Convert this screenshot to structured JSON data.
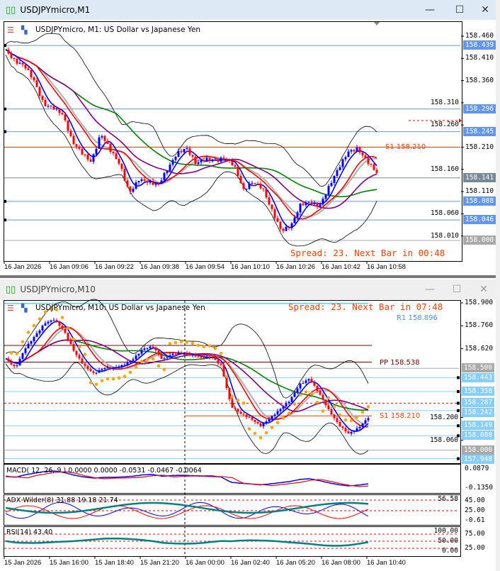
{
  "top": {
    "window_title": "USDJPYmicro,M1",
    "chart_info": "USDJPYmicro, M1:  US Dollar vs Japanese Yen",
    "spread_text": "Spread: 23. Next Bar in 00:48",
    "s1_label": "S1 158.210",
    "price_ticks": [
      "158.460",
      "158.410",
      "158.360",
      "158.310",
      "158.260",
      "158.210",
      "158.160",
      "158.110",
      "158.060",
      "158.010"
    ],
    "price_labels": [
      {
        "v": "158.439",
        "c": "#6495ed"
      },
      {
        "v": "158.296",
        "c": "#6495ed"
      },
      {
        "v": "158.245",
        "c": "#6495ed"
      },
      {
        "v": "158.141",
        "c": "#778899"
      },
      {
        "v": "158.088",
        "c": "#6495ed"
      },
      {
        "v": "158.046",
        "c": "#6495ed"
      },
      {
        "v": "158.000",
        "c": "#a9a9a9"
      }
    ],
    "time_labels": [
      "16 Jan 2026",
      "16 Jan 09:06",
      "16 Jan 09:22",
      "16 Jan 09:38",
      "16 Jan 09:54",
      "16 Jan 10:10",
      "16 Jan 10:26",
      "16 Jan 10:42",
      "16 Jan 10:58"
    ],
    "closes": [
      158.43,
      158.4,
      158.39,
      158.36,
      158.31,
      158.3,
      158.28,
      158.22,
      158.2,
      158.18,
      158.24,
      158.2,
      158.17,
      158.11,
      158.14,
      158.13,
      158.12,
      158.16,
      158.2,
      158.21,
      158.17,
      158.18,
      158.18,
      158.19,
      158.17,
      158.11,
      158.13,
      158.12,
      158.07,
      158.02,
      158.03,
      158.08,
      158.09,
      158.08,
      158.12,
      158.16,
      158.2,
      158.21,
      158.18,
      158.15
    ]
  },
  "bottom": {
    "window_title": "USDJPYmicro,M10",
    "chart_info": "USDJPYmicro, M10:  US Dollar vs Japanese Yen",
    "spread_text": "Spread: 23. Next Bar in 07:48",
    "r1_label": "R1 158.896",
    "pp_label": "PP 158.538",
    "s1_label": "S1 158.210",
    "price_ticks": [
      "158.900",
      "158.760",
      "158.620",
      "158.200",
      "158.060"
    ],
    "price_labels": [
      {
        "v": "158.500",
        "c": "#a9a9a9"
      },
      {
        "v": "158.443",
        "c": "#87cefa"
      },
      {
        "v": "158.358",
        "c": "#87cefa"
      },
      {
        "v": "158.287",
        "c": "#87cefa"
      },
      {
        "v": "158.242",
        "c": "#87cefa"
      },
      {
        "v": "158.149",
        "c": "#87cefa"
      },
      {
        "v": "158.088",
        "c": "#87cefa"
      },
      {
        "v": "158.000",
        "c": "#a9a9a9"
      },
      {
        "v": "157.948",
        "c": "#87cefa"
      }
    ],
    "time_labels": [
      "15 Jan 2026",
      "15 Jan 16:00",
      "15 Jan 18:40",
      "15 Jan 21:20",
      "16 Jan 00:00",
      "16 Jan 02:40",
      "16 Jan 05:20",
      "16 Jan 08:00",
      "16 Jan 10:40"
    ],
    "closes": [
      158.56,
      158.5,
      158.62,
      158.7,
      158.78,
      158.8,
      158.72,
      158.6,
      158.52,
      158.47,
      158.5,
      158.5,
      158.52,
      158.56,
      158.62,
      158.63,
      158.55,
      158.59,
      158.6,
      158.58,
      158.56,
      158.57,
      158.52,
      158.27,
      158.22,
      158.19,
      158.15,
      158.2,
      158.25,
      158.3,
      158.4,
      158.44,
      158.35,
      158.24,
      158.15,
      158.1,
      158.14,
      158.2
    ],
    "macd": {
      "label": "MACD( 12, 26, 9 ) 0.0000 0.0000 -0.0531 -0.0467 -0.0064",
      "ticks": [
        "0.0879",
        "-0.1350"
      ]
    },
    "adx": {
      "label": "ADX Wilder(8) 31.88 19.18 21.74",
      "ticks": [
        "56.58",
        "45.00",
        "25.00",
        "-0.61"
      ]
    },
    "rsi": {
      "label": "RSI(14) 43.40",
      "ticks": [
        "100.00",
        "75.00",
        "50.00",
        "25.00",
        "0.00"
      ]
    }
  },
  "colors": {
    "up": "#0000ff",
    "down": "#ff0000",
    "ma_blue": "#0000ff",
    "ma_red": "#ff0000",
    "ma_purple": "#800080",
    "ma_green": "#008000",
    "ma_gray": "#b0b0b0",
    "spread": "#ff4000",
    "adx": "#008080"
  }
}
